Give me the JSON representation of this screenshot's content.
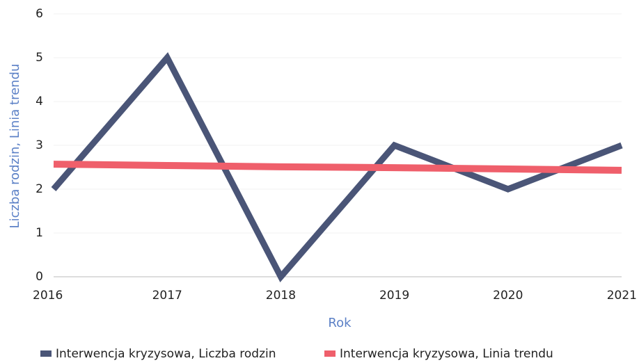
{
  "chart_data": {
    "type": "line",
    "x": [
      2016,
      2017,
      2018,
      2019,
      2020,
      2021
    ],
    "series": [
      {
        "name": "Interwencja kryzysowa, Liczba rodzin",
        "color": "#4a5577",
        "values": [
          2,
          5,
          0,
          3,
          2,
          3
        ]
      },
      {
        "name": "Interwencja kryzysowa, Linia trendu",
        "color": "#ef5f6b",
        "values": [
          2.57,
          2.54,
          2.51,
          2.49,
          2.46,
          2.43
        ]
      }
    ],
    "xlabel": "Rok",
    "ylabel": "Liczba rodzin, Linia trendu",
    "xlim": [
      2016,
      2021
    ],
    "xticks": [
      2016,
      2017,
      2018,
      2019,
      2020,
      2021
    ],
    "ylim": [
      0,
      6
    ],
    "yticks": [
      0,
      1,
      2,
      3,
      4,
      5,
      6
    ],
    "grid": true,
    "legend": "bottom"
  }
}
